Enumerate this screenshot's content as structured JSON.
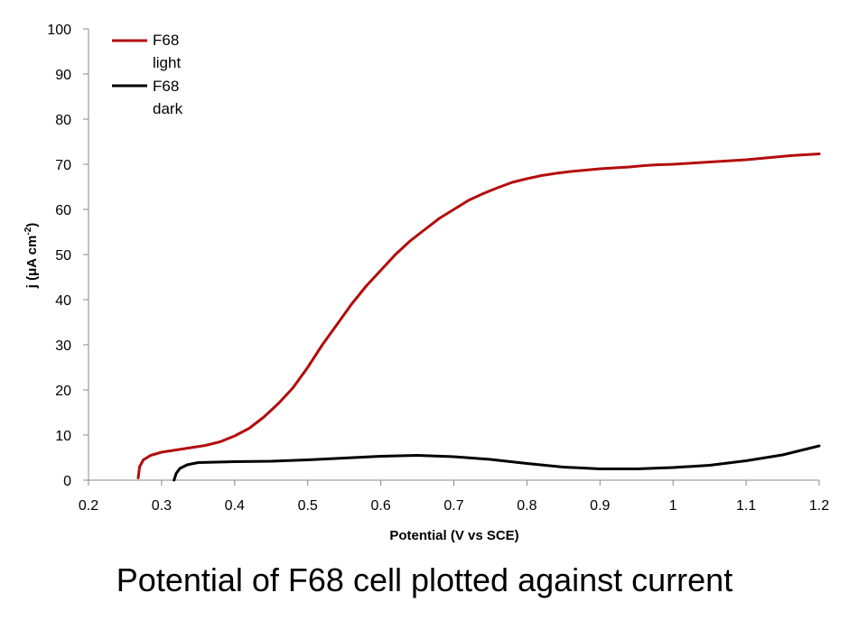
{
  "caption": "Potential of F68 cell plotted against current",
  "chart_data": {
    "type": "line",
    "title": "",
    "xlabel": "Potential (V vs SCE)",
    "ylabel_main": "j (μA cm",
    "ylabel_sup": "-2",
    "ylabel_end": ")",
    "xlim": [
      0.2,
      1.2
    ],
    "ylim": [
      0,
      100
    ],
    "xticks": [
      "0.2",
      "0.3",
      "0.4",
      "0.5",
      "0.6",
      "0.7",
      "0.8",
      "0.9",
      "1",
      "1.1",
      "1.2"
    ],
    "yticks": [
      "0",
      "10",
      "20",
      "30",
      "40",
      "50",
      "60",
      "70",
      "80",
      "90",
      "100"
    ],
    "grid": false,
    "legend_position": "top-left",
    "series": [
      {
        "legend_line1": "F68",
        "legend_line2": "light",
        "color": "#b30d0d",
        "points": [
          [
            0.268,
            0.5
          ],
          [
            0.27,
            3.0
          ],
          [
            0.275,
            4.5
          ],
          [
            0.285,
            5.5
          ],
          [
            0.3,
            6.2
          ],
          [
            0.32,
            6.7
          ],
          [
            0.34,
            7.2
          ],
          [
            0.36,
            7.7
          ],
          [
            0.38,
            8.5
          ],
          [
            0.4,
            9.8
          ],
          [
            0.42,
            11.5
          ],
          [
            0.44,
            14.0
          ],
          [
            0.46,
            17.0
          ],
          [
            0.48,
            20.5
          ],
          [
            0.5,
            25.0
          ],
          [
            0.52,
            30.0
          ],
          [
            0.54,
            34.5
          ],
          [
            0.56,
            39.0
          ],
          [
            0.58,
            43.0
          ],
          [
            0.6,
            46.5
          ],
          [
            0.62,
            50.0
          ],
          [
            0.64,
            53.0
          ],
          [
            0.66,
            55.5
          ],
          [
            0.68,
            58.0
          ],
          [
            0.7,
            60.0
          ],
          [
            0.72,
            62.0
          ],
          [
            0.74,
            63.5
          ],
          [
            0.76,
            64.8
          ],
          [
            0.78,
            66.0
          ],
          [
            0.8,
            66.8
          ],
          [
            0.82,
            67.5
          ],
          [
            0.84,
            68.0
          ],
          [
            0.86,
            68.4
          ],
          [
            0.88,
            68.7
          ],
          [
            0.9,
            69.0
          ],
          [
            0.92,
            69.2
          ],
          [
            0.94,
            69.4
          ],
          [
            0.96,
            69.7
          ],
          [
            0.98,
            69.9
          ],
          [
            1.0,
            70.0
          ],
          [
            1.02,
            70.2
          ],
          [
            1.04,
            70.4
          ],
          [
            1.06,
            70.6
          ],
          [
            1.08,
            70.8
          ],
          [
            1.1,
            71.0
          ],
          [
            1.12,
            71.3
          ],
          [
            1.14,
            71.6
          ],
          [
            1.16,
            71.9
          ],
          [
            1.18,
            72.1
          ],
          [
            1.2,
            72.3
          ]
        ]
      },
      {
        "legend_line1": "F68",
        "legend_line2": "dark",
        "color": "#000000",
        "points": [
          [
            0.317,
            0.0
          ],
          [
            0.32,
            1.5
          ],
          [
            0.325,
            2.6
          ],
          [
            0.335,
            3.4
          ],
          [
            0.35,
            3.9
          ],
          [
            0.4,
            4.1
          ],
          [
            0.45,
            4.2
          ],
          [
            0.5,
            4.5
          ],
          [
            0.55,
            4.9
          ],
          [
            0.6,
            5.3
          ],
          [
            0.65,
            5.5
          ],
          [
            0.7,
            5.2
          ],
          [
            0.75,
            4.6
          ],
          [
            0.8,
            3.7
          ],
          [
            0.85,
            2.9
          ],
          [
            0.9,
            2.5
          ],
          [
            0.95,
            2.5
          ],
          [
            1.0,
            2.8
          ],
          [
            1.05,
            3.3
          ],
          [
            1.1,
            4.3
          ],
          [
            1.15,
            5.6
          ],
          [
            1.2,
            7.6
          ]
        ]
      }
    ]
  }
}
